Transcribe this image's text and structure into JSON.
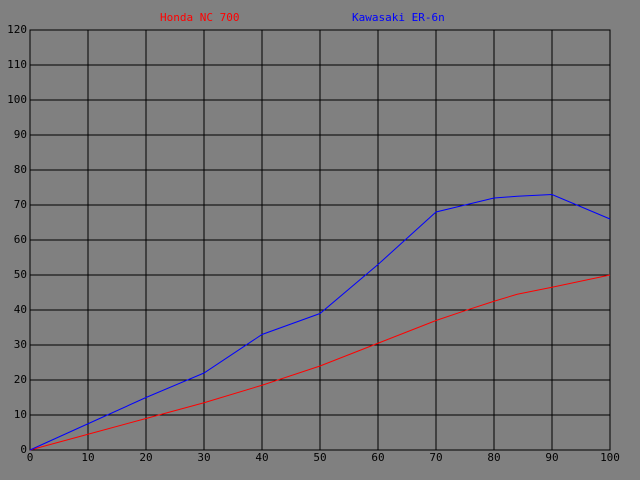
{
  "chart_data": {
    "type": "line",
    "x": [
      0,
      10,
      20,
      30,
      40,
      50,
      60,
      70,
      75,
      80,
      84,
      90,
      100
    ],
    "series": [
      {
        "name": "Honda NC 700",
        "color": "#ff0000",
        "values": [
          0,
          4.5,
          9,
          13.5,
          18.5,
          24,
          30.5,
          37,
          39.8,
          42.5,
          44.5,
          46.5,
          50
        ]
      },
      {
        "name": "Kawasaki ER-6n",
        "color": "#0000ff",
        "values": [
          0,
          7.5,
          15,
          22,
          33,
          39,
          53,
          68,
          70,
          72,
          72.5,
          73,
          66
        ]
      }
    ],
    "xlim": [
      0,
      100
    ],
    "xticks": [
      0,
      10,
      20,
      30,
      40,
      50,
      60,
      70,
      80,
      90,
      100
    ],
    "ylim": [
      0,
      120
    ],
    "yticks": [
      0,
      10,
      20,
      30,
      40,
      50,
      60,
      70,
      80,
      90,
      100,
      110,
      120
    ],
    "grid": true,
    "legend": "top"
  }
}
